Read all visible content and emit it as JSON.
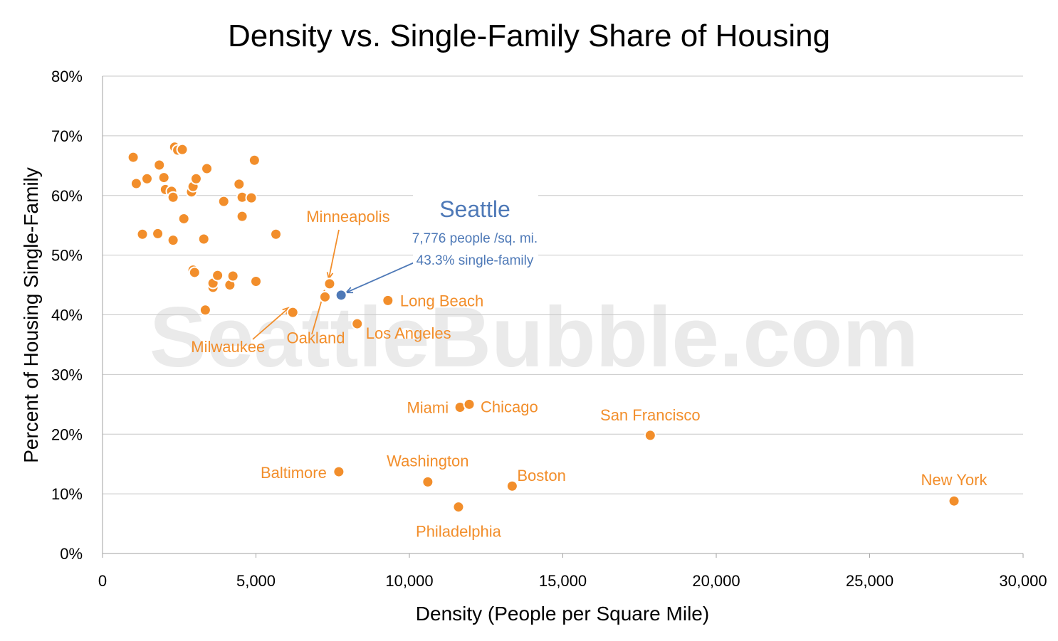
{
  "chart_data": {
    "type": "scatter",
    "title": "Density vs. Single-Family Share of Housing",
    "xlabel": "Density (People per Square Mile)",
    "ylabel": "Percent of Housing Single-Family",
    "xlim": [
      0,
      30000
    ],
    "ylim": [
      0,
      0.8
    ],
    "x_ticks": [
      "0",
      "5,000",
      "10,000",
      "15,000",
      "20,000",
      "25,000",
      "30,000"
    ],
    "y_ticks": [
      "0%",
      "10%",
      "20%",
      "30%",
      "40%",
      "50%",
      "60%",
      "70%",
      "80%"
    ],
    "grid": "horizontal",
    "watermark": "SeattleBubble.com",
    "colors": {
      "points": "#F28E2B",
      "highlight": "#4E79B7",
      "grid": "#c8c8c8",
      "watermark": "#d9d9d9"
    },
    "highlight": {
      "name": "Seattle",
      "x": 7776,
      "y": 0.433,
      "detail_1": "7,776 people /sq. mi.",
      "detail_2": "43.3% single-family"
    },
    "labeled_points": [
      {
        "name": "Minneapolis",
        "x": 7400,
        "y": 0.452
      },
      {
        "name": "Oakland",
        "x": 7250,
        "y": 0.43
      },
      {
        "name": "Milwaukee",
        "x": 6200,
        "y": 0.404
      },
      {
        "name": "Long Beach",
        "x": 9300,
        "y": 0.424
      },
      {
        "name": "Los Angeles",
        "x": 8300,
        "y": 0.385
      },
      {
        "name": "Miami",
        "x": 11650,
        "y": 0.245
      },
      {
        "name": "Chicago",
        "x": 11950,
        "y": 0.25
      },
      {
        "name": "San Francisco",
        "x": 17850,
        "y": 0.198
      },
      {
        "name": "Baltimore",
        "x": 7700,
        "y": 0.137
      },
      {
        "name": "Washington",
        "x": 10600,
        "y": 0.12
      },
      {
        "name": "Boston",
        "x": 13350,
        "y": 0.113
      },
      {
        "name": "Philadelphia",
        "x": 11600,
        "y": 0.078
      },
      {
        "name": "New York",
        "x": 27750,
        "y": 0.088
      }
    ],
    "other_points": [
      {
        "x": 1000,
        "y": 0.664
      },
      {
        "x": 1100,
        "y": 0.62
      },
      {
        "x": 1450,
        "y": 0.628
      },
      {
        "x": 1300,
        "y": 0.535
      },
      {
        "x": 1800,
        "y": 0.536
      },
      {
        "x": 1850,
        "y": 0.651
      },
      {
        "x": 2000,
        "y": 0.63
      },
      {
        "x": 2050,
        "y": 0.61
      },
      {
        "x": 2250,
        "y": 0.607
      },
      {
        "x": 2300,
        "y": 0.597
      },
      {
        "x": 2300,
        "y": 0.525
      },
      {
        "x": 2350,
        "y": 0.681
      },
      {
        "x": 2450,
        "y": 0.676
      },
      {
        "x": 2600,
        "y": 0.677
      },
      {
        "x": 2650,
        "y": 0.561
      },
      {
        "x": 2900,
        "y": 0.606
      },
      {
        "x": 2950,
        "y": 0.615
      },
      {
        "x": 3050,
        "y": 0.628
      },
      {
        "x": 2950,
        "y": 0.475
      },
      {
        "x": 3000,
        "y": 0.471
      },
      {
        "x": 3300,
        "y": 0.527
      },
      {
        "x": 3400,
        "y": 0.645
      },
      {
        "x": 3350,
        "y": 0.408
      },
      {
        "x": 3600,
        "y": 0.446
      },
      {
        "x": 3600,
        "y": 0.453
      },
      {
        "x": 3750,
        "y": 0.466
      },
      {
        "x": 3950,
        "y": 0.59
      },
      {
        "x": 4150,
        "y": 0.45
      },
      {
        "x": 4250,
        "y": 0.465
      },
      {
        "x": 4450,
        "y": 0.619
      },
      {
        "x": 4550,
        "y": 0.597
      },
      {
        "x": 4550,
        "y": 0.565
      },
      {
        "x": 4850,
        "y": 0.596
      },
      {
        "x": 4950,
        "y": 0.659
      },
      {
        "x": 5000,
        "y": 0.456
      },
      {
        "x": 5650,
        "y": 0.535
      }
    ]
  }
}
